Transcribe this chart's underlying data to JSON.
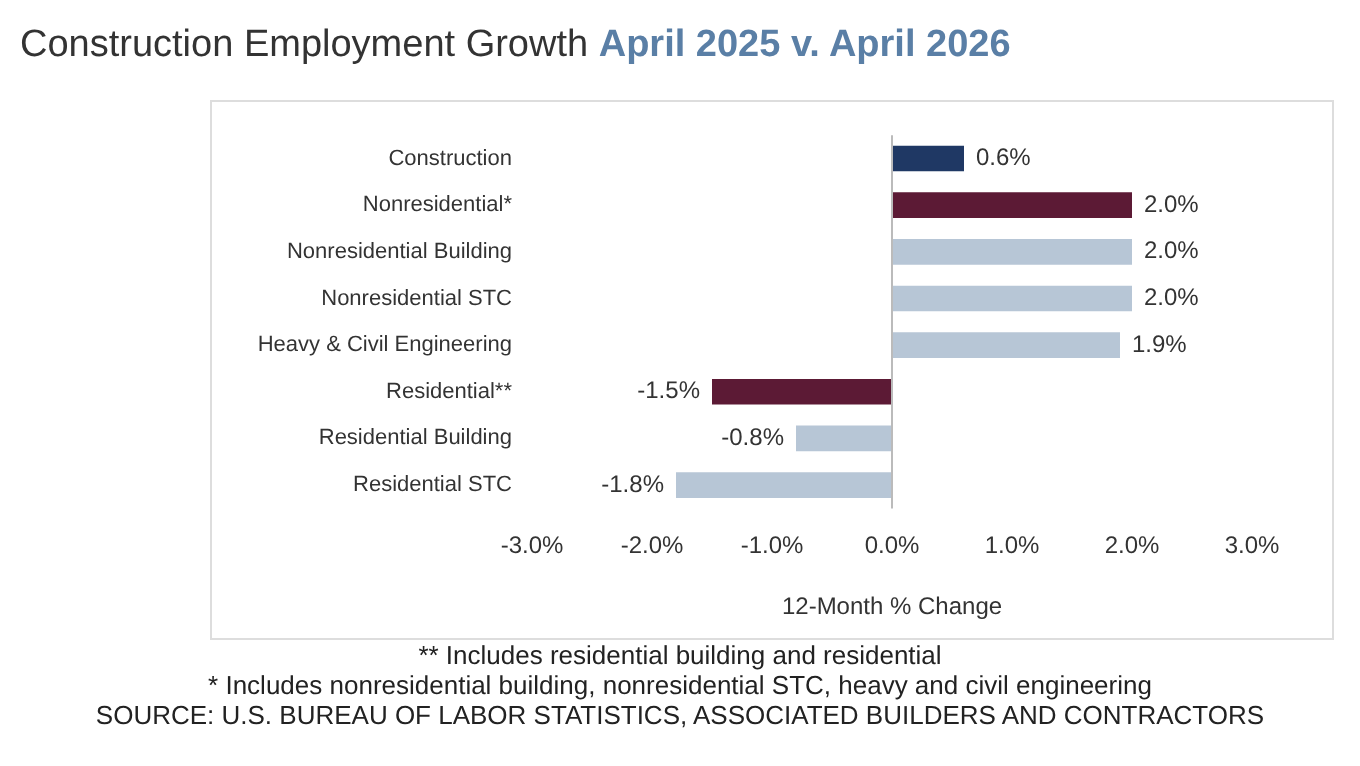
{
  "chart_data": {
    "type": "bar",
    "orientation": "horizontal",
    "title": "Construction Employment Growth",
    "subtitle": "April 2025 v. April 2026",
    "categories": [
      "Construction",
      "Nonresidential*",
      "Nonresidential Building",
      "Nonresidential STC",
      "Heavy & Civil Engineering",
      "Residential**",
      "Residential Building",
      "Residential STC"
    ],
    "values": [
      0.6,
      2.0,
      2.0,
      2.0,
      1.9,
      -1.5,
      -0.8,
      -1.8
    ],
    "colors": [
      "#1f3864",
      "#5c1a35",
      "#b7c6d6",
      "#b7c6d6",
      "#b7c6d6",
      "#5c1a35",
      "#b7c6d6",
      "#b7c6d6"
    ],
    "value_labels": [
      "0.6%",
      "2.0%",
      "2.0%",
      "2.0%",
      "1.9%",
      "-1.5%",
      "-0.8%",
      "-1.8%"
    ],
    "xlim": [
      -3,
      3
    ],
    "xticks": [
      {
        "value": -3,
        "label": "-3.0%"
      },
      {
        "value": -2,
        "label": "-2.0%"
      },
      {
        "value": -1,
        "label": "-1.0%"
      },
      {
        "value": 0,
        "label": "0.0%"
      },
      {
        "value": 1,
        "label": "1.0%"
      },
      {
        "value": 2,
        "label": "2.0%"
      },
      {
        "value": 3,
        "label": "3.0%"
      }
    ],
    "xlabel": "12-Month % Change",
    "grid": false,
    "legend": false,
    "ref_lines": [
      {
        "axis": "x",
        "value": 0,
        "color": "#bbbbbb"
      }
    ],
    "annotations": [
      "** Includes residential building and residential",
      "* Includes nonresidential building, nonresidential STC, heavy and civil engineering",
      "SOURCE: U.S. BUREAU OF LABOR STATISTICS, ASSOCIATED BUILDERS AND CONTRACTORS"
    ]
  }
}
